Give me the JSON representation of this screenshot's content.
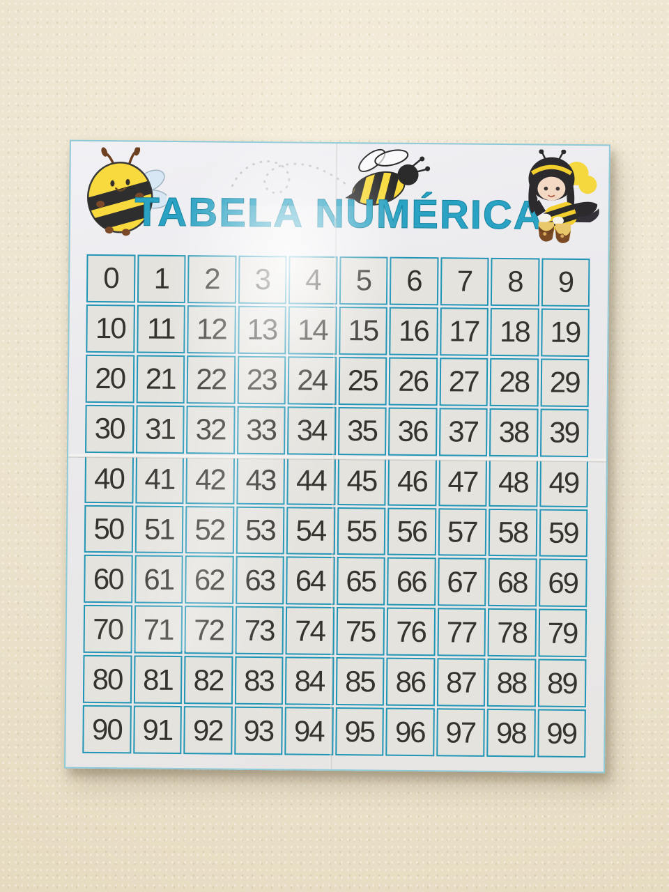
{
  "poster": {
    "title": "TABELA NUMÉRICA",
    "decorations": [
      "round-bee-icon",
      "flying-bee-icon",
      "dashed-flight-trail",
      "bee-girl-icon"
    ],
    "sheet_seams": [
      "horizontal",
      "vertical"
    ]
  },
  "colors": {
    "title_teal": "#2aa2c3",
    "grid_border_teal": "#2095b5",
    "number_ink": "#36332e",
    "bee_yellow": "#f6d93f",
    "bee_black": "#2b2b2b",
    "wing_blue": "#d7e7f3",
    "honey_brown": "#7a4a24",
    "paper": "#eae9ec",
    "wall_cream": "#ede5cf"
  },
  "grid": {
    "rows": [
      [
        "0",
        "1",
        "2",
        "3",
        "4",
        "5",
        "6",
        "7",
        "8",
        "9"
      ],
      [
        "10",
        "11",
        "12",
        "13",
        "14",
        "15",
        "16",
        "17",
        "18",
        "19"
      ],
      [
        "20",
        "21",
        "22",
        "23",
        "24",
        "25",
        "26",
        "27",
        "28",
        "29"
      ],
      [
        "30",
        "31",
        "32",
        "33",
        "34",
        "35",
        "36",
        "37",
        "38",
        "39"
      ],
      [
        "40",
        "41",
        "42",
        "43",
        "44",
        "45",
        "46",
        "47",
        "48",
        "49"
      ],
      [
        "50",
        "51",
        "52",
        "53",
        "54",
        "55",
        "56",
        "57",
        "58",
        "59"
      ],
      [
        "60",
        "61",
        "62",
        "63",
        "64",
        "65",
        "66",
        "67",
        "68",
        "69"
      ],
      [
        "70",
        "71",
        "72",
        "73",
        "74",
        "75",
        "76",
        "77",
        "78",
        "79"
      ],
      [
        "80",
        "81",
        "82",
        "83",
        "84",
        "85",
        "86",
        "87",
        "88",
        "89"
      ],
      [
        "90",
        "91",
        "92",
        "93",
        "94",
        "95",
        "96",
        "97",
        "98",
        "99"
      ]
    ]
  }
}
